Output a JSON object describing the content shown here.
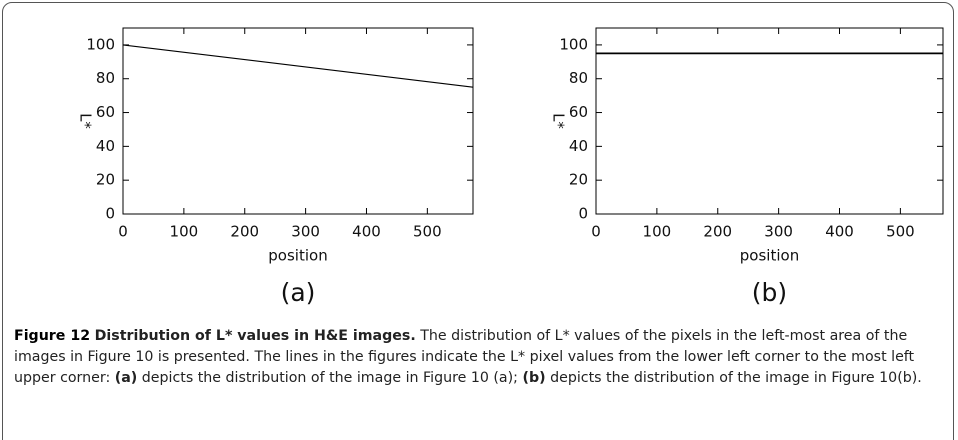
{
  "chart_data": [
    {
      "type": "line",
      "label": "(a)",
      "xlabel": "position",
      "ylabel": "L*",
      "xlim": [
        0,
        575
      ],
      "ylim": [
        0,
        110
      ],
      "xticks": [
        0,
        100,
        200,
        300,
        400,
        500
      ],
      "yticks": [
        0,
        20,
        40,
        60,
        80,
        100
      ],
      "series": [
        {
          "color": "#000000",
          "x": [
            0,
            575
          ],
          "values": [
            100,
            75
          ]
        }
      ]
    },
    {
      "type": "line",
      "label": "(b)",
      "xlabel": "position",
      "ylabel": "L*",
      "xlim": [
        0,
        570
      ],
      "ylim": [
        0,
        110
      ],
      "xticks": [
        0,
        100,
        200,
        300,
        400,
        500
      ],
      "yticks": [
        0,
        20,
        40,
        60,
        80,
        100
      ],
      "series": [
        {
          "color": "#000000",
          "x": [
            0,
            570
          ],
          "values": [
            95,
            95
          ]
        }
      ]
    }
  ],
  "caption": {
    "label": "Figure 12",
    "title": "Distribution of L* values in H&E images.",
    "segments": [
      {
        "text": "The distribution of L* values of the pixels in the left-most area of the images in Figure 10 is presented. The lines in the figures indicate the L* pixel values from the lower left corner to the most left upper corner: ",
        "bold": false
      },
      {
        "text": "(a)",
        "bold": true
      },
      {
        "text": " depicts the distribution of the image in Figure 10 (a); ",
        "bold": false
      },
      {
        "text": "(b)",
        "bold": true
      },
      {
        "text": " depicts the distribution of the image in Figure 10(b).",
        "bold": false
      }
    ]
  }
}
